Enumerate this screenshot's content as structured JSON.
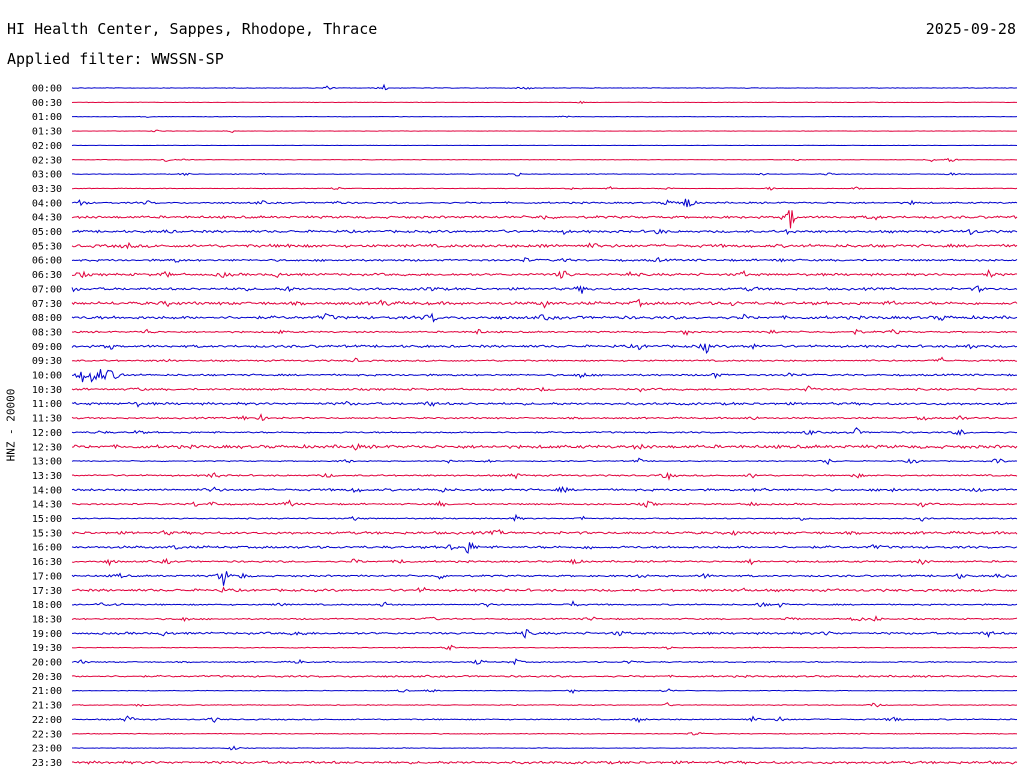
{
  "header": {
    "station": "HI Health Center, Sappes, Rhodope, Thrace",
    "date": "2025-09-28",
    "filter": "Applied filter: WWSSN-SP"
  },
  "chart_data": {
    "type": "line",
    "title": "HI Health Center, Sappes, Rhodope, Thrace",
    "ylabel": "HNZ - 20000",
    "xlabel": "",
    "colors": [
      "#0000cc",
      "#e0003c"
    ],
    "rows": [
      {
        "label": "00:00",
        "color": "#0000cc",
        "noise": 0.3,
        "bursts": [
          [
            0.27,
            2
          ],
          [
            0.33,
            3
          ],
          [
            0.48,
            2.5
          ]
        ]
      },
      {
        "label": "00:30",
        "color": "#e0003c",
        "noise": 0.2,
        "bursts": [
          [
            0.54,
            1.5
          ]
        ]
      },
      {
        "label": "01:00",
        "color": "#0000cc",
        "noise": 0.2,
        "bursts": [
          [
            0.08,
            1
          ],
          [
            0.52,
            1.5
          ]
        ]
      },
      {
        "label": "01:30",
        "color": "#e0003c",
        "noise": 0.2,
        "bursts": [
          [
            0.09,
            1.5
          ],
          [
            0.17,
            1.5
          ]
        ]
      },
      {
        "label": "02:00",
        "color": "#0000cc",
        "noise": 0.15,
        "bursts": []
      },
      {
        "label": "02:30",
        "color": "#e0003c",
        "noise": 0.25,
        "bursts": [
          [
            0.1,
            3
          ],
          [
            0.12,
            1.5
          ],
          [
            0.77,
            1.5
          ],
          [
            0.91,
            2
          ],
          [
            0.93,
            3
          ]
        ]
      },
      {
        "label": "03:00",
        "color": "#0000cc",
        "noise": 0.3,
        "bursts": [
          [
            0.12,
            2
          ],
          [
            0.2,
            1.5
          ],
          [
            0.47,
            3
          ],
          [
            0.73,
            1.5
          ],
          [
            0.8,
            1.5
          ],
          [
            0.93,
            2
          ]
        ]
      },
      {
        "label": "03:30",
        "color": "#e0003c",
        "noise": 0.3,
        "bursts": [
          [
            0.28,
            2
          ],
          [
            0.53,
            1.5
          ],
          [
            0.57,
            1.5
          ],
          [
            0.63,
            1.5
          ],
          [
            0.74,
            2
          ],
          [
            0.83,
            1.5
          ]
        ]
      },
      {
        "label": "04:00",
        "color": "#0000cc",
        "noise": 0.8,
        "bursts": [
          [
            0.01,
            4
          ],
          [
            0.08,
            2
          ],
          [
            0.2,
            2
          ],
          [
            0.28,
            2
          ],
          [
            0.63,
            3
          ],
          [
            0.65,
            10
          ],
          [
            0.89,
            2
          ]
        ]
      },
      {
        "label": "04:30",
        "color": "#e0003c",
        "noise": 1.2,
        "bursts": [
          [
            0.5,
            2.5
          ],
          [
            0.76,
            12
          ],
          [
            0.85,
            2.5
          ]
        ]
      },
      {
        "label": "05:00",
        "color": "#0000cc",
        "noise": 1.2,
        "bursts": [
          [
            0.1,
            2
          ],
          [
            0.45,
            2
          ],
          [
            0.52,
            2
          ],
          [
            0.62,
            3
          ],
          [
            0.76,
            3
          ],
          [
            0.95,
            3
          ]
        ]
      },
      {
        "label": "05:30",
        "color": "#e0003c",
        "noise": 1.5,
        "bursts": [
          [
            0.06,
            2.5
          ],
          [
            0.23,
            2.5
          ],
          [
            0.5,
            2
          ],
          [
            0.55,
            2.5
          ]
        ]
      },
      {
        "label": "06:00",
        "color": "#0000cc",
        "noise": 1,
        "bursts": [
          [
            0.11,
            2
          ],
          [
            0.48,
            2
          ],
          [
            0.52,
            2
          ],
          [
            0.62,
            2
          ],
          [
            0.75,
            2
          ]
        ]
      },
      {
        "label": "06:30",
        "color": "#e0003c",
        "noise": 1.2,
        "bursts": [
          [
            0.01,
            3
          ],
          [
            0.1,
            3
          ],
          [
            0.16,
            3
          ],
          [
            0.22,
            4
          ],
          [
            0.52,
            6
          ],
          [
            0.59,
            2.5
          ],
          [
            0.71,
            3
          ],
          [
            0.97,
            4
          ]
        ]
      },
      {
        "label": "07:00",
        "color": "#0000cc",
        "noise": 1.2,
        "bursts": [
          [
            0.0,
            3
          ],
          [
            0.18,
            2.5
          ],
          [
            0.23,
            2.5
          ],
          [
            0.38,
            3
          ],
          [
            0.54,
            4
          ],
          [
            0.72,
            3
          ],
          [
            0.96,
            3
          ]
        ]
      },
      {
        "label": "07:30",
        "color": "#e0003c",
        "noise": 1.5,
        "bursts": [
          [
            0.1,
            2.5
          ],
          [
            0.33,
            5
          ],
          [
            0.5,
            3
          ],
          [
            0.6,
            3
          ],
          [
            0.7,
            2.5
          ],
          [
            0.87,
            2.5
          ]
        ]
      },
      {
        "label": "08:00",
        "color": "#0000cc",
        "noise": 1.5,
        "bursts": [
          [
            0.27,
            4
          ],
          [
            0.38,
            6
          ],
          [
            0.5,
            2.5
          ],
          [
            0.71,
            2.5
          ],
          [
            0.92,
            2.5
          ]
        ]
      },
      {
        "label": "08:30",
        "color": "#e0003c",
        "noise": 0.8,
        "bursts": [
          [
            0.08,
            3
          ],
          [
            0.22,
            2
          ],
          [
            0.43,
            3
          ],
          [
            0.65,
            3
          ],
          [
            0.74,
            3
          ],
          [
            0.83,
            3
          ],
          [
            0.87,
            3
          ]
        ]
      },
      {
        "label": "09:00",
        "color": "#0000cc",
        "noise": 1.2,
        "bursts": [
          [
            0.04,
            3
          ],
          [
            0.6,
            3
          ],
          [
            0.67,
            8
          ],
          [
            0.72,
            3
          ],
          [
            0.95,
            3
          ]
        ]
      },
      {
        "label": "09:30",
        "color": "#e0003c",
        "noise": 0.8,
        "bursts": [
          [
            0.1,
            2
          ],
          [
            0.3,
            2
          ],
          [
            0.92,
            3
          ]
        ]
      },
      {
        "label": "10:00",
        "color": "#0000cc",
        "noise": 0.9,
        "bursts": [
          [
            0.01,
            8
          ],
          [
            0.02,
            8
          ],
          [
            0.03,
            7
          ],
          [
            0.04,
            6
          ],
          [
            0.05,
            4
          ],
          [
            0.54,
            4
          ],
          [
            0.68,
            3
          ],
          [
            0.76,
            2.5
          ]
        ]
      },
      {
        "label": "10:30",
        "color": "#e0003c",
        "noise": 1,
        "bursts": [
          [
            0.07,
            2
          ],
          [
            0.5,
            2.5
          ],
          [
            0.6,
            2
          ],
          [
            0.78,
            3
          ]
        ]
      },
      {
        "label": "11:00",
        "color": "#0000cc",
        "noise": 1.2,
        "bursts": [
          [
            0.07,
            2
          ],
          [
            0.29,
            2
          ],
          [
            0.38,
            3
          ]
        ]
      },
      {
        "label": "11:30",
        "color": "#e0003c",
        "noise": 0.8,
        "bursts": [
          [
            0.18,
            3
          ],
          [
            0.2,
            3
          ],
          [
            0.72,
            3
          ],
          [
            0.9,
            3
          ],
          [
            0.94,
            3
          ]
        ]
      },
      {
        "label": "12:00",
        "color": "#0000cc",
        "noise": 0.8,
        "bursts": [
          [
            0.03,
            2
          ],
          [
            0.07,
            2.5
          ],
          [
            0.78,
            3
          ],
          [
            0.83,
            4
          ],
          [
            0.94,
            4
          ]
        ]
      },
      {
        "label": "12:30",
        "color": "#e0003c",
        "noise": 1.6,
        "bursts": [
          [
            0.3,
            2
          ],
          [
            0.6,
            2
          ]
        ]
      },
      {
        "label": "13:00",
        "color": "#0000cc",
        "noise": 0.5,
        "bursts": [
          [
            0.29,
            3
          ],
          [
            0.4,
            3
          ],
          [
            0.44,
            2
          ],
          [
            0.6,
            2.5
          ],
          [
            0.8,
            3
          ],
          [
            0.89,
            4
          ],
          [
            0.98,
            4
          ]
        ]
      },
      {
        "label": "13:30",
        "color": "#e0003c",
        "noise": 0.8,
        "bursts": [
          [
            0.15,
            4
          ],
          [
            0.27,
            2.5
          ],
          [
            0.47,
            3
          ],
          [
            0.63,
            5
          ],
          [
            0.72,
            3
          ],
          [
            0.83,
            3
          ]
        ]
      },
      {
        "label": "14:00",
        "color": "#0000cc",
        "noise": 1.1,
        "bursts": [
          [
            0.15,
            3
          ],
          [
            0.3,
            3
          ],
          [
            0.39,
            3
          ],
          [
            0.52,
            3
          ],
          [
            0.73,
            2.5
          ],
          [
            0.87,
            3
          ],
          [
            0.96,
            2.5
          ]
        ]
      },
      {
        "label": "14:30",
        "color": "#e0003c",
        "noise": 0.8,
        "bursts": [
          [
            0.13,
            2.5
          ],
          [
            0.15,
            3
          ],
          [
            0.23,
            4
          ],
          [
            0.39,
            3
          ],
          [
            0.61,
            4
          ],
          [
            0.72,
            2.5
          ],
          [
            0.9,
            2.5
          ]
        ]
      },
      {
        "label": "15:00",
        "color": "#0000cc",
        "noise": 0.6,
        "bursts": [
          [
            0.3,
            2.5
          ],
          [
            0.47,
            3
          ],
          [
            0.54,
            2.5
          ],
          [
            0.77,
            2.5
          ],
          [
            0.9,
            2.5
          ]
        ]
      },
      {
        "label": "15:30",
        "color": "#e0003c",
        "noise": 1.3,
        "bursts": [
          [
            0.1,
            2
          ],
          [
            0.45,
            3
          ],
          [
            0.7,
            2
          ]
        ]
      },
      {
        "label": "16:00",
        "color": "#0000cc",
        "noise": 1.2,
        "bursts": [
          [
            0.11,
            2
          ],
          [
            0.4,
            3
          ],
          [
            0.42,
            9
          ],
          [
            0.55,
            2.5
          ],
          [
            0.85,
            2.5
          ]
        ]
      },
      {
        "label": "16:30",
        "color": "#e0003c",
        "noise": 0.9,
        "bursts": [
          [
            0.04,
            3
          ],
          [
            0.1,
            2.5
          ],
          [
            0.3,
            3
          ],
          [
            0.35,
            3
          ],
          [
            0.53,
            4
          ],
          [
            0.72,
            3
          ],
          [
            0.9,
            3
          ]
        ]
      },
      {
        "label": "17:00",
        "color": "#0000cc",
        "noise": 0.9,
        "bursts": [
          [
            0.05,
            2.5
          ],
          [
            0.16,
            11
          ],
          [
            0.18,
            3
          ],
          [
            0.39,
            3
          ],
          [
            0.6,
            3
          ],
          [
            0.67,
            2.5
          ],
          [
            0.94,
            3
          ],
          [
            0.98,
            3
          ]
        ]
      },
      {
        "label": "17:30",
        "color": "#e0003c",
        "noise": 1.2,
        "bursts": [
          [
            0.16,
            2
          ],
          [
            0.37,
            3
          ],
          [
            0.71,
            2
          ]
        ]
      },
      {
        "label": "18:00",
        "color": "#0000cc",
        "noise": 0.7,
        "bursts": [
          [
            0.03,
            2.5
          ],
          [
            0.05,
            2.5
          ],
          [
            0.22,
            2.5
          ],
          [
            0.33,
            3
          ],
          [
            0.44,
            2.5
          ],
          [
            0.53,
            3
          ],
          [
            0.73,
            3
          ],
          [
            0.75,
            2.5
          ]
        ]
      },
      {
        "label": "18:30",
        "color": "#e0003c",
        "noise": 0.7,
        "bursts": [
          [
            0.12,
            2.5
          ],
          [
            0.38,
            2.5
          ],
          [
            0.55,
            2.5
          ],
          [
            0.76,
            3
          ],
          [
            0.83,
            4
          ],
          [
            0.85,
            3
          ]
        ]
      },
      {
        "label": "19:00",
        "color": "#0000cc",
        "noise": 1.1,
        "bursts": [
          [
            0.1,
            4
          ],
          [
            0.24,
            4
          ],
          [
            0.48,
            4
          ],
          [
            0.58,
            3
          ],
          [
            0.8,
            2.5
          ],
          [
            0.97,
            3
          ]
        ]
      },
      {
        "label": "19:30",
        "color": "#e0003c",
        "noise": 0.4,
        "bursts": [
          [
            0.4,
            3
          ],
          [
            0.63,
            2.5
          ]
        ]
      },
      {
        "label": "20:00",
        "color": "#0000cc",
        "noise": 0.6,
        "bursts": [
          [
            0.01,
            2
          ],
          [
            0.24,
            2.5
          ],
          [
            0.43,
            3
          ],
          [
            0.47,
            3
          ],
          [
            0.59,
            3
          ]
        ]
      },
      {
        "label": "20:30",
        "color": "#e0003c",
        "noise": 0.9,
        "bursts": []
      },
      {
        "label": "21:00",
        "color": "#0000cc",
        "noise": 0.3,
        "bursts": [
          [
            0.35,
            2.5
          ],
          [
            0.38,
            2.5
          ],
          [
            0.53,
            2.5
          ],
          [
            0.63,
            3
          ]
        ]
      },
      {
        "label": "21:30",
        "color": "#e0003c",
        "noise": 0.4,
        "bursts": [
          [
            0.07,
            2
          ],
          [
            0.63,
            2
          ],
          [
            0.85,
            3
          ]
        ]
      },
      {
        "label": "22:00",
        "color": "#0000cc",
        "noise": 0.6,
        "bursts": [
          [
            0.06,
            5
          ],
          [
            0.15,
            3
          ],
          [
            0.6,
            3
          ],
          [
            0.72,
            3
          ],
          [
            0.75,
            3
          ],
          [
            0.87,
            4
          ]
        ]
      },
      {
        "label": "22:30",
        "color": "#e0003c",
        "noise": 0.4,
        "bursts": [
          [
            0.66,
            3
          ]
        ]
      },
      {
        "label": "23:00",
        "color": "#0000cc",
        "noise": 0.3,
        "bursts": [
          [
            0.17,
            3
          ]
        ]
      },
      {
        "label": "23:30",
        "color": "#e0003c",
        "noise": 1.3,
        "bursts": []
      }
    ]
  }
}
